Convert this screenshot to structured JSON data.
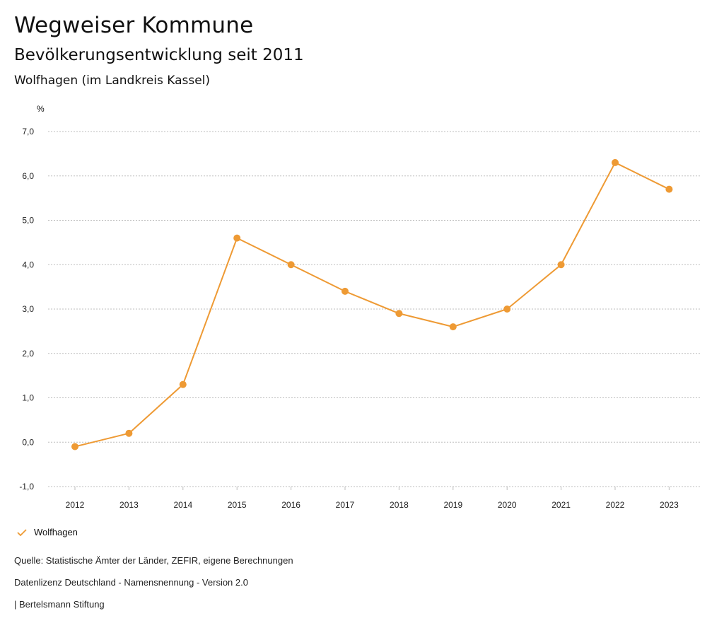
{
  "header": {
    "title": "Wegweiser Kommune",
    "subtitle": "Bevölkerungsentwicklung seit 2011",
    "place": "Wolfhagen (im Landkreis Kassel)"
  },
  "colors": {
    "series": "#ee9a34",
    "grid": "#bdbdbd",
    "text": "#222222"
  },
  "chart_data": {
    "type": "line",
    "title": "Bevölkerungsentwicklung seit 2011",
    "xlabel": "",
    "ylabel": "%",
    "x": [
      "2012",
      "2013",
      "2014",
      "2015",
      "2016",
      "2017",
      "2018",
      "2019",
      "2020",
      "2021",
      "2022",
      "2023"
    ],
    "series": [
      {
        "name": "Wolfhagen",
        "values": [
          -0.1,
          0.2,
          1.3,
          4.6,
          4.0,
          3.4,
          2.9,
          2.6,
          3.0,
          4.0,
          6.3,
          5.7
        ]
      }
    ],
    "ylim": [
      -1.0,
      7.0
    ],
    "yticks": [
      "-1,0",
      "0,0",
      "1,0",
      "2,0",
      "3,0",
      "4,0",
      "5,0",
      "6,0",
      "7,0"
    ],
    "grid": true,
    "legend": "bottom-left"
  },
  "footer": {
    "source": "Quelle: Statistische Ämter der Länder, ZEFIR, eigene Berechnungen",
    "license": "Datenlizenz Deutschland - Namensnennung - Version 2.0",
    "publisher": "| Bertelsmann Stiftung"
  }
}
